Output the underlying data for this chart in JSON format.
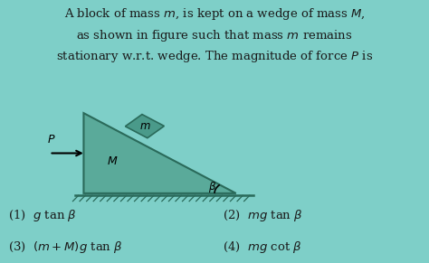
{
  "bg_color": "#7ecfc8",
  "wedge_color": "#5aaa9a",
  "wedge_edge": "#2a6a5a",
  "block_color": "#4a9a8a",
  "block_edge": "#2a6a5a",
  "ground_line_color": "#2a6a5a",
  "text_color": "#1a1a1a",
  "title1": "A block of mass $m$, is kept on a wedge of mass $M$,",
  "title2": "as shown in figure such that mass $m$ remains",
  "title3": "stationary w.r.t. wedge. The magnitude of force $P$ is",
  "opt1": "(1)  $g$ tan $\\beta$",
  "opt2": "(2)  $mg$ tan $\\beta$",
  "opt3": "(3)  $(m + M)g$ tan $\\beta$",
  "opt4": "(4)  $mg$ cot $\\beta$",
  "label_M": "$M$",
  "label_m": "$m$",
  "label_P": "$P$",
  "label_beta": "$\\beta$",
  "wedge_bx": 0.195,
  "wedge_by": 0.265,
  "wedge_bw": 0.355,
  "wedge_bh": 0.305,
  "font_title": 9.5,
  "font_label": 9.0,
  "font_opts": 9.5
}
